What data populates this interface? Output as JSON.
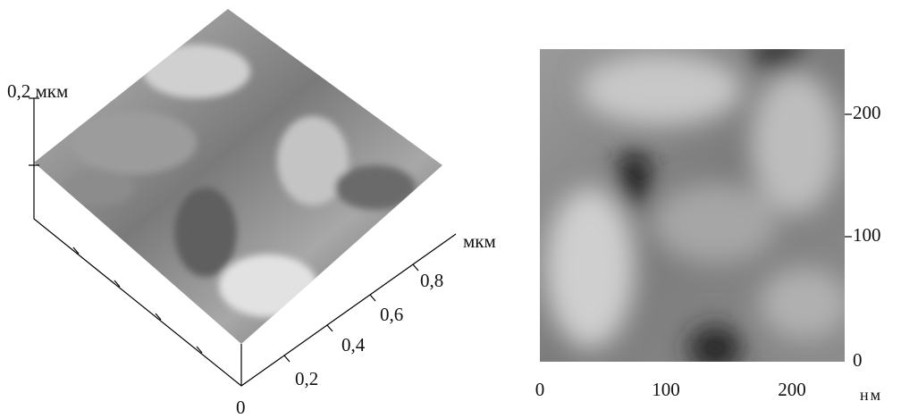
{
  "surface_3d": {
    "z_label": "0,2 мкм",
    "axis_unit": "мкм",
    "axis_ticks": [
      "0,2",
      "0,4",
      "0,6",
      "0,8"
    ],
    "origin": "0"
  },
  "image_2d": {
    "y_ticks": [
      0,
      100,
      200
    ],
    "x_ticks": [
      0,
      100,
      200
    ],
    "x_unit": "нм"
  }
}
